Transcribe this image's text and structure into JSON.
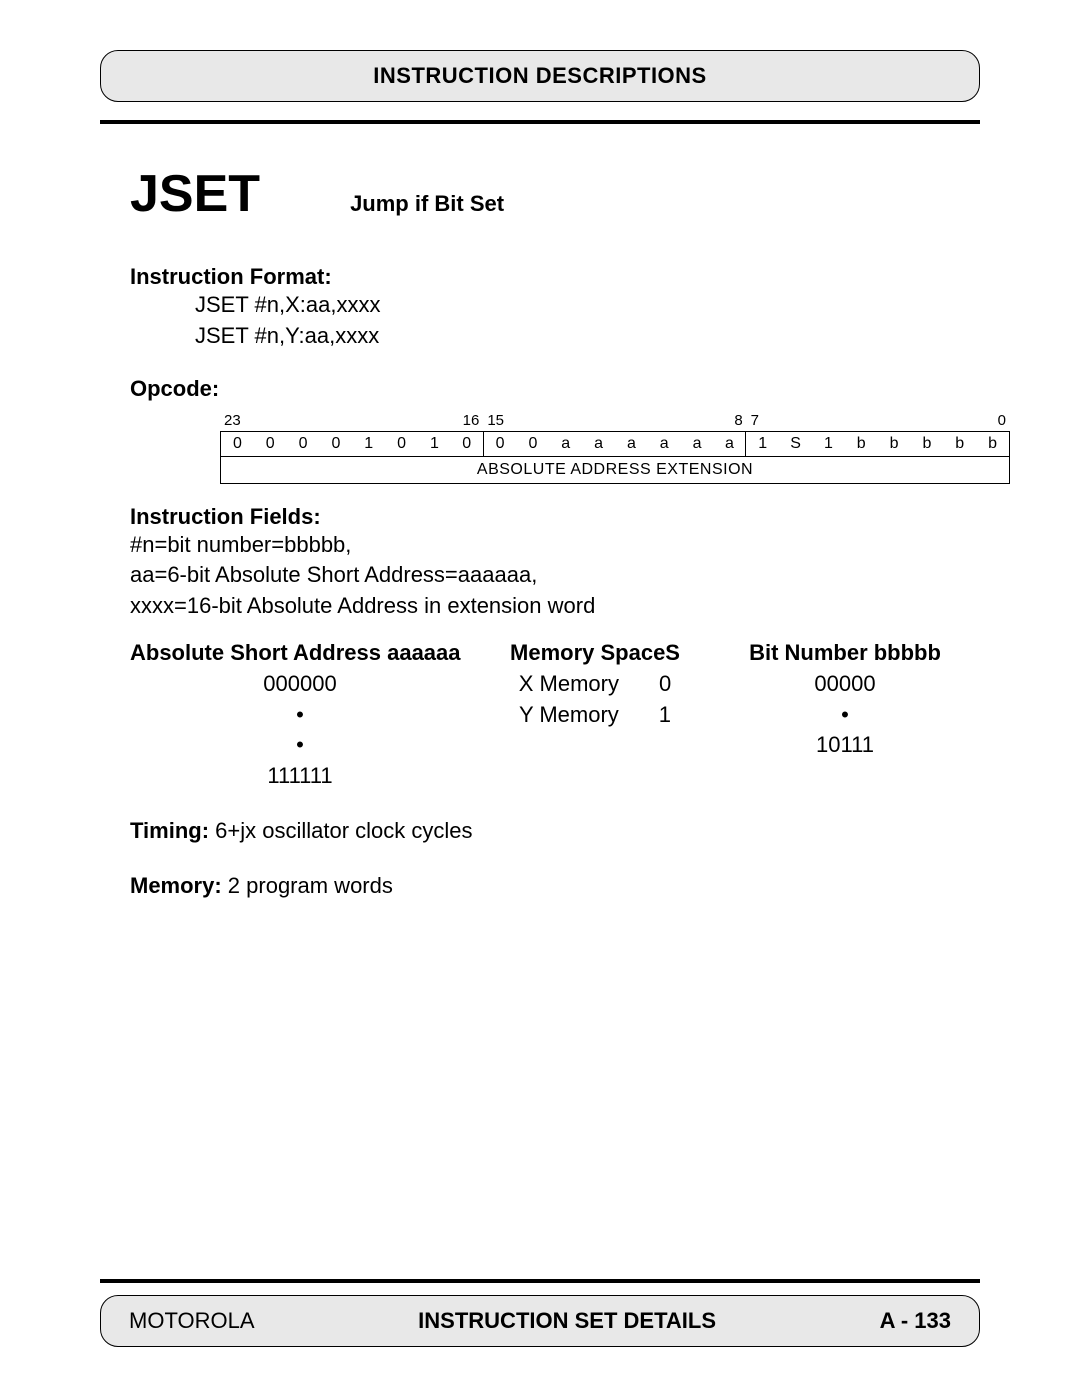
{
  "header": {
    "title": "INSTRUCTION DESCRIPTIONS"
  },
  "mnemonic": {
    "name": "JSET",
    "description": "Jump if Bit Set"
  },
  "format": {
    "label": "Instruction Format:",
    "lines": [
      "JSET #n,X:aa,xxxx",
      "JSET #n,Y:aa,xxxx"
    ]
  },
  "opcode": {
    "label": "Opcode:",
    "bit_markers": {
      "b23": "23",
      "b16": "16",
      "b15": "15",
      "b8": "8",
      "b7": "7",
      "b0": "0"
    },
    "bits": [
      "0",
      "0",
      "0",
      "0",
      "1",
      "0",
      "1",
      "0",
      "0",
      "0",
      "a",
      "a",
      "a",
      "a",
      "a",
      "a",
      "1",
      "S",
      "1",
      "b",
      "b",
      "b",
      "b",
      "b"
    ],
    "ext_label": "ABSOLUTE ADDRESS EXTENSION"
  },
  "fields": {
    "label": "Instruction Fields:",
    "lines": [
      "#n=bit number=bbbbb,",
      "aa=6-bit Absolute Short Address=aaaaaa,",
      "xxxx=16-bit Absolute Address in extension word"
    ]
  },
  "tables": {
    "addr": {
      "header": "Absolute Short Address aaaaaa",
      "rows": [
        "000000",
        "•",
        "•",
        "111111"
      ]
    },
    "mem": {
      "header": "Memory SpaceS",
      "rows": [
        {
          "name": "X Memory",
          "code": "0"
        },
        {
          "name": "Y Memory",
          "code": "1"
        }
      ]
    },
    "bitnum": {
      "header": "Bit Number bbbbb",
      "rows": [
        "00000",
        "•",
        "10111"
      ]
    }
  },
  "timing": {
    "label": "Timing:",
    "value": " 6+jx oscillator clock cycles"
  },
  "memory": {
    "label": "Memory:",
    "value": " 2 program words"
  },
  "footer": {
    "left": "MOTOROLA",
    "center": "INSTRUCTION SET DETAILS",
    "right": "A - 133"
  }
}
